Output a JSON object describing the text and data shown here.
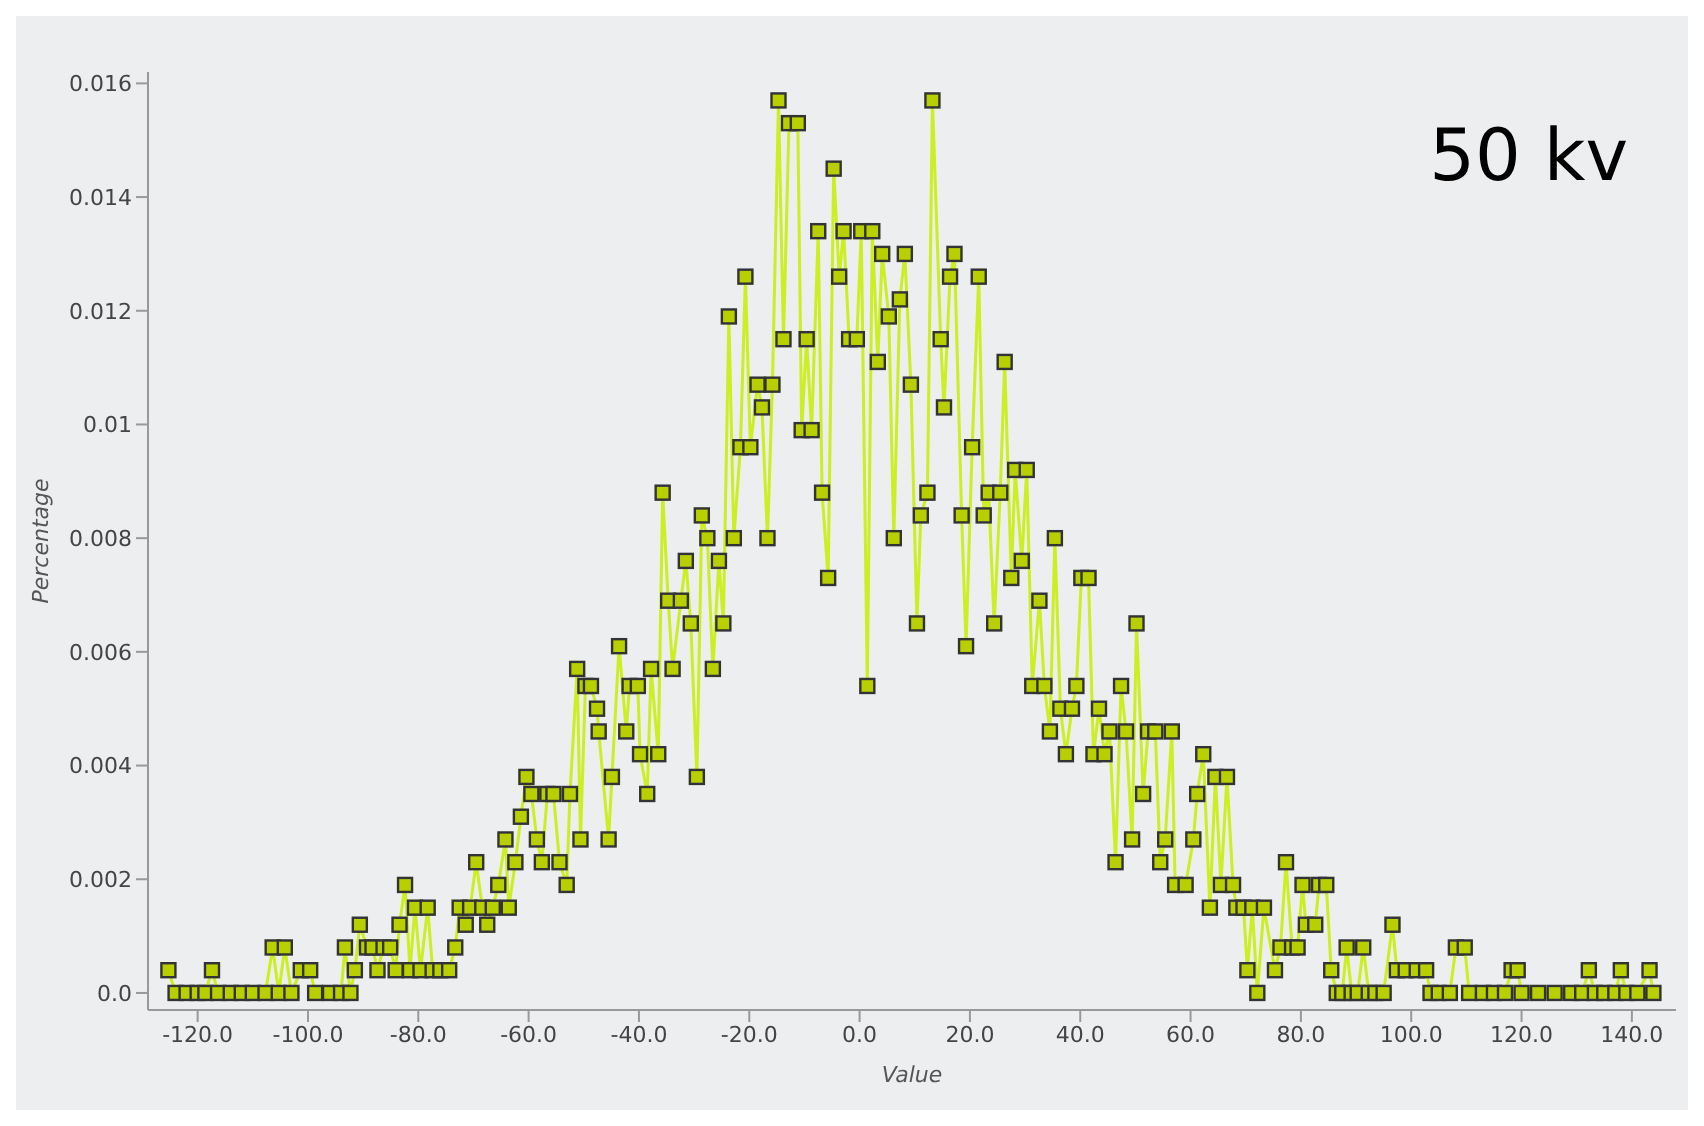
{
  "chart_data": {
    "type": "line",
    "xlabel": "Value",
    "ylabel": "Percentage",
    "annotations": [
      "50 kv"
    ],
    "color": "#ccee22",
    "marker": "square",
    "xlim": [
      -129,
      148
    ],
    "ylim": [
      -0.0003,
      0.0162
    ],
    "xticks": [
      {
        "value": -120,
        "label": "-120.0"
      },
      {
        "value": -100,
        "label": "-100.0"
      },
      {
        "value": -80,
        "label": "-80.0"
      },
      {
        "value": -60,
        "label": "-60.0"
      },
      {
        "value": -40,
        "label": "-40.0"
      },
      {
        "value": -20,
        "label": "-20.0"
      },
      {
        "value": 0,
        "label": "0.0"
      },
      {
        "value": 20,
        "label": "20.0"
      },
      {
        "value": 40,
        "label": "40.0"
      },
      {
        "value": 60,
        "label": "60.0"
      },
      {
        "value": 80,
        "label": "80.0"
      },
      {
        "value": 100,
        "label": "100.0"
      },
      {
        "value": 120,
        "label": "120.0"
      },
      {
        "value": 140,
        "label": "140.0"
      }
    ],
    "yticks": [
      {
        "value": 0,
        "label": "0.0"
      },
      0.002,
      0.004,
      0.006,
      0.008,
      0.01,
      0.012,
      0.014,
      0.016
    ],
    "x": [
      -125.3,
      -124,
      -122,
      -120,
      -118.6,
      -117.4,
      -116.3,
      -114,
      -112,
      -110,
      -107.7,
      -106.4,
      -105.3,
      -104.2,
      -103,
      -101.3,
      -99.6,
      -98.7,
      -96,
      -94,
      -93.3,
      -92.3,
      -91.5,
      -90.6,
      -89.3,
      -88.3,
      -87.4,
      -86.3,
      -85.1,
      -84.1,
      -83.4,
      -82.4,
      -81.5,
      -80.6,
      -79.6,
      -78.3,
      -77.4,
      -76,
      -74.4,
      -73.3,
      -72.5,
      -71.4,
      -70.6,
      -69.5,
      -68.4,
      -67.5,
      -66.5,
      -65.5,
      -64.2,
      -63.6,
      -62.4,
      -61.4,
      -60.4,
      -59.5,
      -58.5,
      -57.6,
      -56.6,
      -55.5,
      -54.4,
      -53.1,
      -52.5,
      -51.2,
      -50.6,
      -49.7,
      -48.7,
      -47.6,
      -47.3,
      -45.5,
      -44.9,
      -43.6,
      -42.3,
      -41.7,
      -40.2,
      -39.8,
      -38.5,
      -37.8,
      -36.5,
      -35.7,
      -34.7,
      -33.9,
      -32.4,
      -31.5,
      -30.6,
      -29.5,
      -28.6,
      -27.6,
      -26.6,
      -25.5,
      -24.7,
      -23.7,
      -22.8,
      -21.6,
      -20.7,
      -19.8,
      -18.5,
      -17.7,
      -16.7,
      -15.8,
      -14.7,
      -13.8,
      -12.8,
      -11.2,
      -10.5,
      -9.6,
      -8.7,
      -7.5,
      -6.8,
      -5.7,
      -4.7,
      -3.7,
      -2.9,
      -1.9,
      -0.5,
      0.3,
      1.4,
      2.3,
      3.3,
      4.1,
      5.3,
      6.2,
      7.3,
      8.2,
      9.3,
      10.4,
      11.1,
      12.3,
      13.2,
      14.7,
      15.3,
      16.4,
      17.2,
      18.5,
      19.3,
      20.4,
      21.6,
      22.5,
      23.4,
      24.4,
      25.5,
      26.3,
      27.5,
      28.2,
      29.4,
      30.3,
      31.3,
      32.6,
      33.5,
      34.5,
      35.4,
      36.4,
      37.4,
      38.5,
      39.3,
      40.2,
      41.5,
      42.4,
      43.4,
      44.4,
      45.3,
      46.4,
      47.4,
      48.3,
      49.4,
      50.2,
      51.4,
      52.3,
      53.6,
      54.5,
      55.4,
      56.6,
      57.2,
      59.1,
      60.5,
      61.2,
      62.3,
      63.5,
      64.5,
      65.5,
      66.6,
      67.7,
      68.3,
      69.6,
      70.3,
      71.2,
      72.1,
      73.3,
      75.3,
      76.3,
      77.3,
      78.4,
      79.4,
      80.3,
      80.9,
      82.6,
      83.3,
      84.6,
      85.5,
      86.5,
      87.5,
      88.3,
      89.2,
      90.3,
      91.3,
      92.3,
      93.5,
      95,
      96.6,
      97.4,
      99,
      101,
      102.7,
      103.5,
      105,
      107,
      108.1,
      109.7,
      110.5,
      113,
      115,
      117,
      118.2,
      119.3,
      120,
      123,
      126,
      129,
      131,
      132.2,
      133.3,
      135,
      137,
      138,
      139,
      141,
      143.2,
      143.9
    ],
    "values": [
      0.0004,
      0,
      0,
      0,
      0,
      0.0004,
      0,
      0,
      0,
      0,
      0,
      0.0008,
      0,
      0.0008,
      0,
      0.0004,
      0.0004,
      0,
      0,
      0,
      0.0008,
      0,
      0.0004,
      0.0012,
      0.0008,
      0.0008,
      0.0004,
      0.0008,
      0.0008,
      0.0004,
      0.0012,
      0.0019,
      0.0004,
      0.0015,
      0.0004,
      0.0015,
      0.0004,
      0.0004,
      0.0004,
      0.0008,
      0.0015,
      0.0012,
      0.0015,
      0.0023,
      0.0015,
      0.0012,
      0.0015,
      0.0019,
      0.0027,
      0.0015,
      0.0023,
      0.0031,
      0.0038,
      0.0035,
      0.0027,
      0.0023,
      0.0035,
      0.0035,
      0.0023,
      0.0019,
      0.0035,
      0.0057,
      0.0027,
      0.0054,
      0.0054,
      0.005,
      0.0046,
      0.0027,
      0.0038,
      0.0061,
      0.0046,
      0.0054,
      0.0054,
      0.0042,
      0.0035,
      0.0057,
      0.0042,
      0.0088,
      0.0069,
      0.0057,
      0.0069,
      0.0076,
      0.0065,
      0.0038,
      0.0084,
      0.008,
      0.0057,
      0.0076,
      0.0065,
      0.0119,
      0.008,
      0.0096,
      0.0126,
      0.0096,
      0.0107,
      0.0103,
      0.008,
      0.0107,
      0.0157,
      0.0115,
      0.0153,
      0.0153,
      0.0099,
      0.0115,
      0.0099,
      0.0134,
      0.0088,
      0.0073,
      0.0145,
      0.0126,
      0.0134,
      0.0115,
      0.0115,
      0.0134,
      0.0054,
      0.0134,
      0.0111,
      0.013,
      0.0119,
      0.008,
      0.0122,
      0.013,
      0.0107,
      0.0065,
      0.0084,
      0.0088,
      0.0157,
      0.0115,
      0.0103,
      0.0126,
      0.013,
      0.0084,
      0.0061,
      0.0096,
      0.0126,
      0.0084,
      0.0088,
      0.0065,
      0.0088,
      0.0111,
      0.0073,
      0.0092,
      0.0076,
      0.0092,
      0.0054,
      0.0069,
      0.0054,
      0.0046,
      0.008,
      0.005,
      0.0042,
      0.005,
      0.0054,
      0.0073,
      0.0073,
      0.0042,
      0.005,
      0.0042,
      0.0046,
      0.0023,
      0.0054,
      0.0046,
      0.0027,
      0.0065,
      0.0035,
      0.0046,
      0.0046,
      0.0023,
      0.0027,
      0.0046,
      0.0019,
      0.0019,
      0.0027,
      0.0035,
      0.0042,
      0.0015,
      0.0038,
      0.0019,
      0.0038,
      0.0019,
      0.0015,
      0.0015,
      0.0004,
      0.0015,
      0,
      0.0015,
      0.0004,
      0.0008,
      0.0023,
      0.0008,
      0.0008,
      0.0019,
      0.0012,
      0.0012,
      0.0019,
      0.0019,
      0.0004,
      0,
      0,
      0.0008,
      0,
      0,
      0.0008,
      0,
      0,
      0,
      0.0012,
      0.0004,
      0.0004,
      0.0004,
      0.0004,
      0,
      0,
      0,
      0.0008,
      0.0008,
      0,
      0,
      0,
      0,
      0.0004,
      0.0004,
      0,
      0,
      0,
      0,
      0,
      0.0004,
      0,
      0,
      0,
      0.0004,
      0,
      0,
      0.0004,
      0
    ]
  }
}
